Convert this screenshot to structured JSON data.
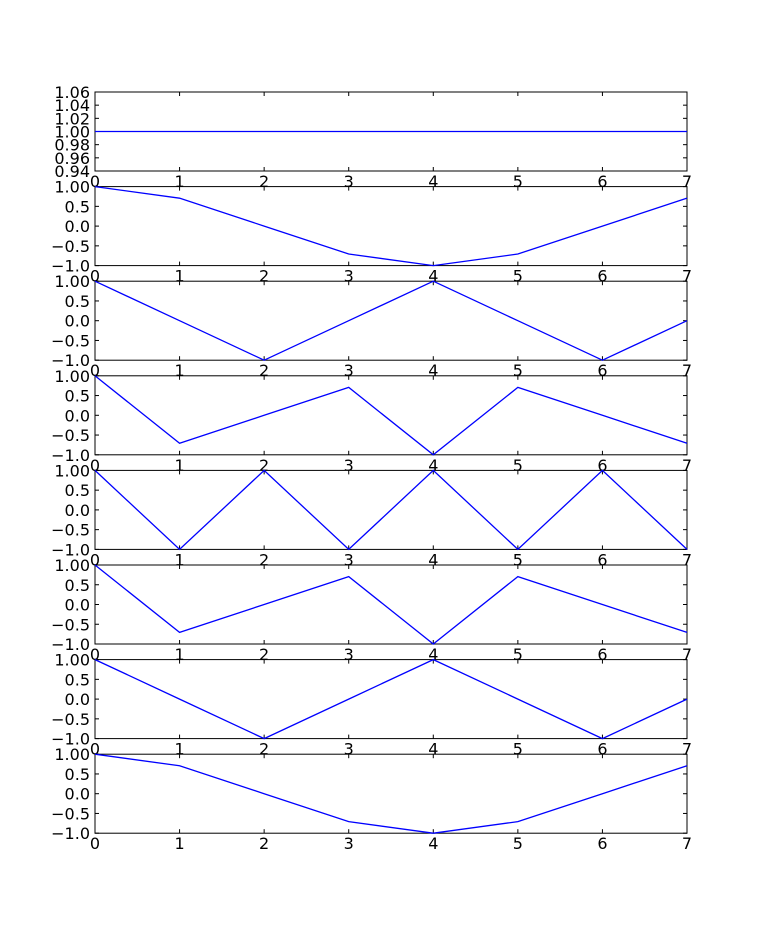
{
  "chart_data": [
    {
      "type": "line",
      "x": [
        0,
        1,
        2,
        3,
        4,
        5,
        6,
        7
      ],
      "xlim": [
        0,
        7
      ],
      "ylim": [
        0.94,
        1.06
      ],
      "xticks": [
        "0",
        "1",
        "2",
        "3",
        "4",
        "5",
        "6",
        "7"
      ],
      "yticks": [
        "0.94",
        "0.96",
        "0.98",
        "1.00",
        "1.02",
        "1.04",
        "1.06"
      ],
      "series": [
        {
          "values": [
            1,
            1,
            1,
            1,
            1,
            1,
            1,
            1
          ],
          "color": "#0000ff"
        }
      ]
    },
    {
      "type": "line",
      "x": [
        0,
        1,
        2,
        3,
        4,
        5,
        6,
        7
      ],
      "xlim": [
        0,
        7
      ],
      "ylim": [
        -1,
        1
      ],
      "xticks": [
        "0",
        "1",
        "2",
        "3",
        "4",
        "5",
        "6",
        "7"
      ],
      "yticks": [
        "−1.0",
        "−0.5",
        "0.0",
        "0.5",
        "1.00"
      ],
      "series": [
        {
          "values": [
            1,
            0.707,
            0,
            -0.707,
            -1,
            -0.707,
            0,
            0.707
          ],
          "color": "#0000ff"
        }
      ]
    },
    {
      "type": "line",
      "x": [
        0,
        1,
        2,
        3,
        4,
        5,
        6,
        7
      ],
      "xlim": [
        0,
        7
      ],
      "ylim": [
        -1,
        1
      ],
      "xticks": [
        "0",
        "1",
        "2",
        "3",
        "4",
        "5",
        "6",
        "7"
      ],
      "yticks": [
        "−1.0",
        "−0.5",
        "0.0",
        "0.5",
        "1.00"
      ],
      "series": [
        {
          "values": [
            1,
            0,
            -1,
            0,
            1,
            0,
            -1,
            0
          ],
          "color": "#0000ff"
        }
      ]
    },
    {
      "type": "line",
      "x": [
        0,
        1,
        2,
        3,
        4,
        5,
        6,
        7
      ],
      "xlim": [
        0,
        7
      ],
      "ylim": [
        -1,
        1
      ],
      "xticks": [
        "0",
        "1",
        "2",
        "3",
        "4",
        "5",
        "6",
        "7"
      ],
      "yticks": [
        "−1.0",
        "−0.5",
        "0.0",
        "0.5",
        "1.00"
      ],
      "series": [
        {
          "values": [
            1,
            -0.707,
            0,
            0.707,
            -1,
            0.707,
            0,
            -0.707
          ],
          "color": "#0000ff"
        }
      ]
    },
    {
      "type": "line",
      "x": [
        0,
        1,
        2,
        3,
        4,
        5,
        6,
        7
      ],
      "xlim": [
        0,
        7
      ],
      "ylim": [
        -1,
        1
      ],
      "xticks": [
        "0",
        "1",
        "2",
        "3",
        "4",
        "5",
        "6",
        "7"
      ],
      "yticks": [
        "−1.0",
        "−0.5",
        "0.0",
        "0.5",
        "1.00"
      ],
      "series": [
        {
          "values": [
            1,
            -1,
            1,
            -1,
            1,
            -1,
            1,
            -1
          ],
          "color": "#0000ff"
        }
      ]
    },
    {
      "type": "line",
      "x": [
        0,
        1,
        2,
        3,
        4,
        5,
        6,
        7
      ],
      "xlim": [
        0,
        7
      ],
      "ylim": [
        -1,
        1
      ],
      "xticks": [
        "0",
        "1",
        "2",
        "3",
        "4",
        "5",
        "6",
        "7"
      ],
      "yticks": [
        "−1.0",
        "−0.5",
        "0.0",
        "0.5",
        "1.00"
      ],
      "series": [
        {
          "values": [
            1,
            -0.707,
            0,
            0.707,
            -1,
            0.707,
            0,
            -0.707
          ],
          "color": "#0000ff"
        }
      ]
    },
    {
      "type": "line",
      "x": [
        0,
        1,
        2,
        3,
        4,
        5,
        6,
        7
      ],
      "xlim": [
        0,
        7
      ],
      "ylim": [
        -1,
        1
      ],
      "xticks": [
        "0",
        "1",
        "2",
        "3",
        "4",
        "5",
        "6",
        "7"
      ],
      "yticks": [
        "−1.0",
        "−0.5",
        "0.0",
        "0.5",
        "1.00"
      ],
      "series": [
        {
          "values": [
            1,
            0,
            -1,
            0,
            1,
            0,
            -1,
            0
          ],
          "color": "#0000ff"
        }
      ]
    },
    {
      "type": "line",
      "x": [
        0,
        1,
        2,
        3,
        4,
        5,
        6,
        7
      ],
      "xlim": [
        0,
        7
      ],
      "ylim": [
        -1,
        1
      ],
      "xticks": [
        "0",
        "1",
        "2",
        "3",
        "4",
        "5",
        "6",
        "7"
      ],
      "yticks": [
        "−1.0",
        "−0.5",
        "0.0",
        "0.5",
        "1.00"
      ],
      "series": [
        {
          "values": [
            1,
            0.707,
            0,
            -0.707,
            -1,
            -0.707,
            0,
            0.707
          ],
          "color": "#0000ff"
        }
      ]
    }
  ]
}
